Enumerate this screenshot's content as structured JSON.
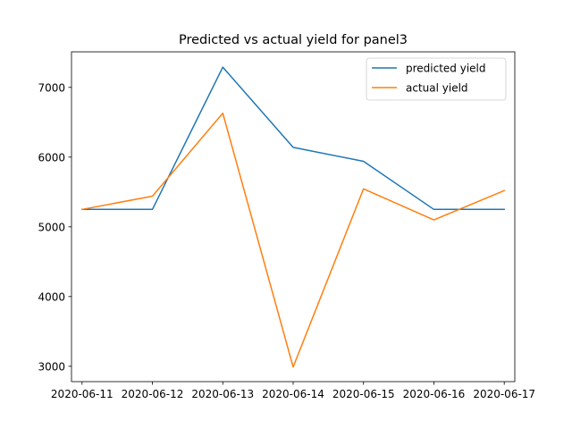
{
  "chart_data": {
    "type": "line",
    "title": "Predicted vs actual yield for panel3",
    "xlabel": "",
    "ylabel": "",
    "x": [
      "2020-06-11",
      "2020-06-12",
      "2020-06-13",
      "2020-06-14",
      "2020-06-15",
      "2020-06-16",
      "2020-06-17"
    ],
    "yticks": [
      3000,
      4000,
      5000,
      6000,
      7000
    ],
    "ylim": [
      2780,
      7510
    ],
    "grid": false,
    "legend_position": "upper right",
    "series": [
      {
        "name": "predicted yield",
        "color": "#1f77b4",
        "values": [
          5250,
          5250,
          7290,
          6140,
          5940,
          5250,
          5250
        ]
      },
      {
        "name": "actual yield",
        "color": "#ff7f0e",
        "values": [
          5250,
          5440,
          6630,
          2990,
          5545,
          5100,
          5520
        ]
      }
    ]
  }
}
